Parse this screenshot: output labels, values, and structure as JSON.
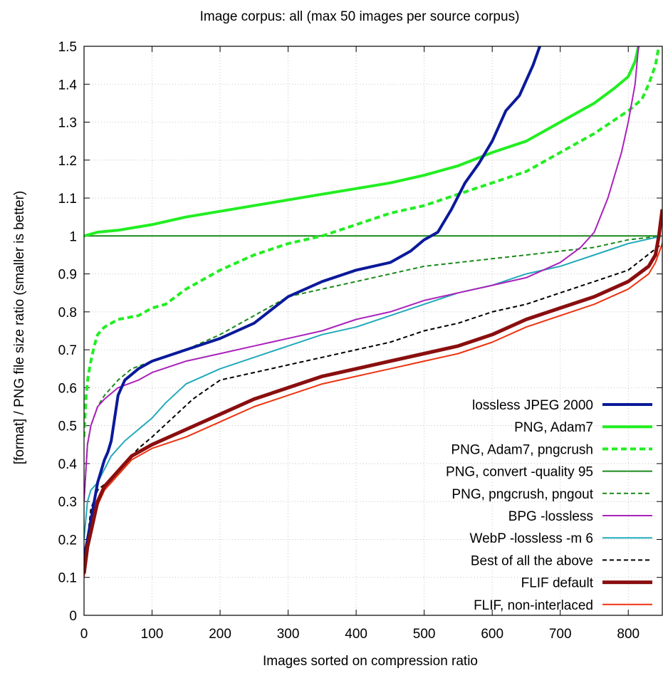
{
  "chart_data": {
    "type": "line",
    "title": "Image corpus: all (max 50 images per source corpus)",
    "xlabel": "Images sorted on compression ratio",
    "ylabel": "[format] / PNG file size ratio (smaller is better)",
    "xlim": [
      0,
      850
    ],
    "ylim": [
      0,
      1.5
    ],
    "xticks": [
      0,
      100,
      200,
      300,
      400,
      500,
      600,
      700,
      800
    ],
    "yticks": [
      0,
      0.1,
      0.2,
      0.3,
      0.4,
      0.5,
      0.6,
      0.7,
      0.8,
      0.9,
      1,
      1.1,
      1.2,
      1.3,
      1.4,
      1.5
    ],
    "grid": true,
    "legend_position": "bottom-right",
    "series": [
      {
        "name": "lossless JPEG 2000",
        "color": "#0b1a99",
        "width": 4,
        "dash": "none",
        "x": [
          0,
          5,
          10,
          15,
          20,
          25,
          30,
          35,
          40,
          45,
          50,
          60,
          80,
          100,
          150,
          200,
          250,
          300,
          350,
          400,
          450,
          480,
          500,
          520,
          540,
          560,
          580,
          600,
          620,
          640,
          660,
          670
        ],
        "y": [
          0.15,
          0.2,
          0.25,
          0.3,
          0.35,
          0.38,
          0.41,
          0.43,
          0.46,
          0.52,
          0.58,
          0.62,
          0.65,
          0.67,
          0.7,
          0.73,
          0.77,
          0.84,
          0.88,
          0.91,
          0.93,
          0.96,
          0.99,
          1.01,
          1.07,
          1.14,
          1.19,
          1.25,
          1.33,
          1.37,
          1.45,
          1.5
        ]
      },
      {
        "name": "PNG, Adam7",
        "color": "#22ee22",
        "width": 4,
        "dash": "none",
        "x": [
          0,
          20,
          50,
          100,
          150,
          200,
          250,
          300,
          350,
          400,
          450,
          500,
          550,
          600,
          650,
          700,
          750,
          780,
          800,
          810,
          815
        ],
        "y": [
          1.0,
          1.01,
          1.015,
          1.03,
          1.05,
          1.065,
          1.08,
          1.095,
          1.11,
          1.125,
          1.14,
          1.16,
          1.185,
          1.22,
          1.25,
          1.3,
          1.35,
          1.39,
          1.42,
          1.46,
          1.5
        ]
      },
      {
        "name": "PNG, Adam7, pngcrush",
        "color": "#22ee22",
        "width": 4,
        "dash": "8,5",
        "x": [
          0,
          3,
          6,
          10,
          15,
          20,
          30,
          50,
          80,
          100,
          120,
          150,
          200,
          250,
          300,
          350,
          400,
          450,
          500,
          550,
          600,
          650,
          700,
          750,
          800,
          820,
          830,
          840,
          845
        ],
        "y": [
          0.47,
          0.58,
          0.63,
          0.67,
          0.71,
          0.74,
          0.76,
          0.78,
          0.79,
          0.81,
          0.82,
          0.86,
          0.91,
          0.95,
          0.98,
          1.0,
          1.03,
          1.06,
          1.08,
          1.11,
          1.14,
          1.17,
          1.22,
          1.27,
          1.33,
          1.36,
          1.4,
          1.45,
          1.5
        ]
      },
      {
        "name": "PNG, convert -quality 95",
        "color": "#1a8a1a",
        "width": 2,
        "dash": "none",
        "x": [
          0,
          850
        ],
        "y": [
          1.0,
          1.0
        ]
      },
      {
        "name": "PNG, pngcrush, pngout",
        "color": "#1a8a1a",
        "width": 2,
        "dash": "6,4",
        "x": [
          0,
          5,
          10,
          20,
          30,
          50,
          70,
          100,
          150,
          200,
          250,
          300,
          350,
          400,
          450,
          500,
          550,
          600,
          650,
          700,
          750,
          800,
          850
        ],
        "y": [
          0.3,
          0.45,
          0.5,
          0.55,
          0.58,
          0.62,
          0.65,
          0.67,
          0.7,
          0.74,
          0.79,
          0.84,
          0.86,
          0.88,
          0.9,
          0.92,
          0.93,
          0.94,
          0.95,
          0.96,
          0.97,
          0.99,
          1.0
        ]
      },
      {
        "name": "BPG -lossless",
        "color": "#aa22bb",
        "width": 2,
        "dash": "none",
        "x": [
          0,
          5,
          10,
          20,
          30,
          50,
          80,
          100,
          150,
          200,
          250,
          300,
          350,
          400,
          450,
          500,
          550,
          600,
          650,
          700,
          730,
          750,
          770,
          790,
          800,
          810,
          815
        ],
        "y": [
          0.3,
          0.45,
          0.5,
          0.55,
          0.57,
          0.6,
          0.62,
          0.64,
          0.67,
          0.69,
          0.71,
          0.73,
          0.75,
          0.78,
          0.8,
          0.83,
          0.85,
          0.87,
          0.89,
          0.93,
          0.97,
          1.01,
          1.1,
          1.22,
          1.3,
          1.4,
          1.5
        ]
      },
      {
        "name": "WebP -lossless -m 6",
        "color": "#22aabb",
        "width": 2,
        "dash": "none",
        "x": [
          0,
          5,
          10,
          20,
          40,
          60,
          80,
          100,
          120,
          150,
          200,
          250,
          300,
          350,
          400,
          450,
          500,
          550,
          600,
          650,
          700,
          750,
          800,
          850
        ],
        "y": [
          0.2,
          0.3,
          0.33,
          0.35,
          0.42,
          0.46,
          0.49,
          0.52,
          0.56,
          0.61,
          0.65,
          0.68,
          0.71,
          0.74,
          0.76,
          0.79,
          0.82,
          0.85,
          0.87,
          0.9,
          0.92,
          0.95,
          0.98,
          1.0
        ]
      },
      {
        "name": "Best of all the above",
        "color": "#000000",
        "width": 2,
        "dash": "6,4",
        "x": [
          0,
          5,
          10,
          20,
          40,
          60,
          80,
          100,
          130,
          160,
          200,
          250,
          300,
          350,
          400,
          450,
          500,
          550,
          600,
          650,
          700,
          750,
          800,
          850
        ],
        "y": [
          0.12,
          0.2,
          0.28,
          0.33,
          0.36,
          0.4,
          0.44,
          0.47,
          0.52,
          0.57,
          0.62,
          0.64,
          0.66,
          0.68,
          0.7,
          0.72,
          0.75,
          0.77,
          0.8,
          0.82,
          0.85,
          0.88,
          0.91,
          0.98
        ]
      },
      {
        "name": "FLIF default",
        "color": "#8a0e0e",
        "width": 5,
        "dash": "none",
        "x": [
          0,
          5,
          10,
          20,
          30,
          50,
          70,
          100,
          150,
          200,
          250,
          300,
          350,
          400,
          450,
          500,
          550,
          600,
          650,
          700,
          750,
          800,
          830,
          840,
          845,
          850
        ],
        "y": [
          0.11,
          0.18,
          0.22,
          0.3,
          0.34,
          0.38,
          0.42,
          0.45,
          0.49,
          0.53,
          0.57,
          0.6,
          0.63,
          0.65,
          0.67,
          0.69,
          0.71,
          0.74,
          0.78,
          0.81,
          0.84,
          0.88,
          0.92,
          0.95,
          1.0,
          1.07
        ]
      },
      {
        "name": "FLIF, non-interlaced",
        "color": "#ee3311",
        "width": 2,
        "dash": "none",
        "x": [
          0,
          5,
          10,
          20,
          30,
          50,
          70,
          100,
          150,
          200,
          250,
          300,
          350,
          400,
          450,
          500,
          550,
          600,
          650,
          700,
          750,
          800,
          830,
          840,
          850
        ],
        "y": [
          0.1,
          0.18,
          0.22,
          0.29,
          0.33,
          0.37,
          0.41,
          0.44,
          0.47,
          0.51,
          0.55,
          0.58,
          0.61,
          0.63,
          0.65,
          0.67,
          0.69,
          0.72,
          0.76,
          0.79,
          0.82,
          0.86,
          0.9,
          0.93,
          0.98
        ]
      }
    ]
  }
}
